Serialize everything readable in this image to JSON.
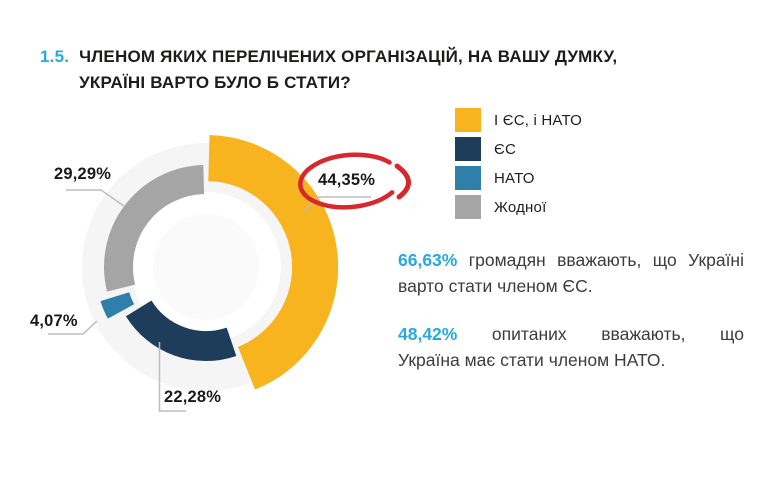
{
  "accent_color": "#29a9e1",
  "title": {
    "number": "1.5.",
    "text": "ЧЛЕНОМ ЯКИХ ПЕРЕЛІЧЕНИХ ОРГАНІЗАЦІЙ, НА ВАШУ ДУМКУ,\nУКРАЇНІ ВАРТО БУЛО Б СТАТИ?"
  },
  "legend": {
    "items": [
      {
        "label": "І ЄС, і НАТО",
        "color": "#F8B41E"
      },
      {
        "label": "ЄС",
        "color": "#1E3D5B"
      },
      {
        "label": "НАТО",
        "color": "#2E7FAA"
      },
      {
        "label": "Жодної",
        "color": "#A5A5A6"
      }
    ]
  },
  "chart_data": {
    "type": "pie",
    "style": "donut",
    "categories": [
      "І ЄС, і НАТО",
      "ЄС",
      "НАТО",
      "Жодної"
    ],
    "values": [
      44.35,
      22.28,
      4.07,
      29.29
    ],
    "labels": [
      "44,35%",
      "22,28%",
      "4,07%",
      "29,29%"
    ],
    "colors": [
      "#F8B41E",
      "#1E3D5B",
      "#2E7FAA",
      "#A5A5A6"
    ],
    "unit": "%",
    "direction": "clockwise",
    "start_angle_deg": 0,
    "legend_position": "right",
    "highlight": {
      "label": "44,35%",
      "annotation": "red-ellipse",
      "color": "#D7282E"
    }
  },
  "insights": [
    {
      "highlight": "66,63%",
      "line1_rest": " громадян вважають, що Україні",
      "line2": "варто стати членом ЄС."
    },
    {
      "highlight": "48,42%",
      "line1_rest": " опитаних вважають, що",
      "line2": "Україна має стати членом НАТО."
    }
  ]
}
